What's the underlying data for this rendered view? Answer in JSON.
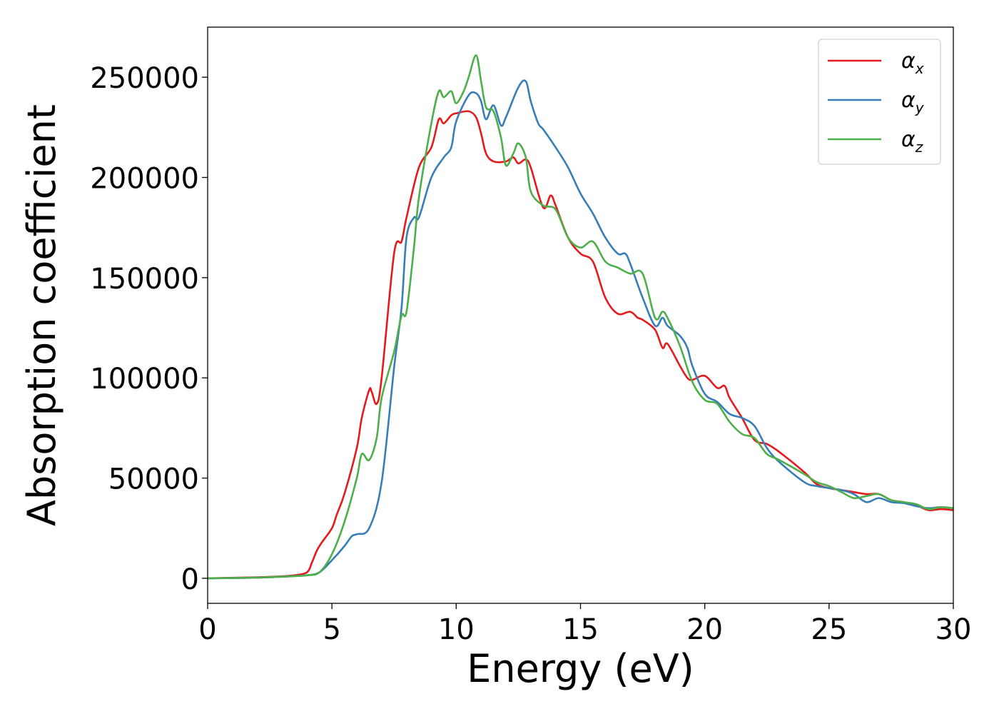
{
  "chart_data": {
    "type": "line",
    "title": "",
    "xlabel": "Energy (eV)",
    "ylabel": "Absorption coefficient",
    "xlim": [
      0,
      30
    ],
    "ylim": [
      -12500,
      275000
    ],
    "xticks": [
      0,
      5,
      10,
      15,
      20,
      25,
      30
    ],
    "xtick_labels": [
      "0",
      "5",
      "10",
      "15",
      "20",
      "25",
      "30"
    ],
    "yticks": [
      0,
      50000,
      100000,
      150000,
      200000,
      250000
    ],
    "ytick_labels": [
      "0",
      "50000",
      "100000",
      "150000",
      "200000",
      "250000"
    ],
    "grid": false,
    "legend_position": "top-right",
    "series": [
      {
        "name": "αx",
        "name_base": "α",
        "name_sub": "x",
        "color": "#e41a1c",
        "x": [
          0,
          2,
          3,
          3.5,
          4,
          4.2,
          4.4,
          4.6,
          5.0,
          5.2,
          5.5,
          6.0,
          6.2,
          6.5,
          6.6,
          6.8,
          7.0,
          7.5,
          7.8,
          8.0,
          8.5,
          9.0,
          9.3,
          9.5,
          9.8,
          10.0,
          10.5,
          10.8,
          11.0,
          11.2,
          11.5,
          12.0,
          12.3,
          12.5,
          12.8,
          13.0,
          13.5,
          13.8,
          14.0,
          14.5,
          15.0,
          15.5,
          16.0,
          16.5,
          17.0,
          17.3,
          17.5,
          18.0,
          18.3,
          18.5,
          19.0,
          19.3,
          19.5,
          20.0,
          20.5,
          20.8,
          21.0,
          21.5,
          22.0,
          22.5,
          23.0,
          24.0,
          24.5,
          25.0,
          25.5,
          26.0,
          26.5,
          27.0,
          27.5,
          28.0,
          28.5,
          29.0,
          29.5,
          30.0
        ],
        "values": [
          0,
          500,
          1000,
          1500,
          3000,
          8000,
          14000,
          18000,
          25000,
          32000,
          42000,
          65000,
          80000,
          94000,
          93000,
          87000,
          100000,
          162000,
          168000,
          180000,
          205000,
          215000,
          229000,
          227000,
          231000,
          232000,
          233000,
          230000,
          222000,
          212000,
          208000,
          208000,
          210000,
          207000,
          209000,
          205000,
          185000,
          191000,
          186000,
          170000,
          162000,
          158000,
          140000,
          132000,
          133000,
          130000,
          129000,
          124000,
          115000,
          117000,
          106000,
          100000,
          99000,
          101000,
          95000,
          96000,
          90000,
          80000,
          69000,
          67000,
          63000,
          53000,
          47000,
          45000,
          44000,
          43000,
          42000,
          42000,
          39000,
          38000,
          36500,
          34000,
          34500,
          34000
        ]
      },
      {
        "name": "αy",
        "name_base": "α",
        "name_sub": "y",
        "color": "#377eb8",
        "x": [
          0,
          2,
          3,
          4,
          4.5,
          5.0,
          5.5,
          5.8,
          6.0,
          6.5,
          7.0,
          7.5,
          7.8,
          8.0,
          8.3,
          8.5,
          9.0,
          9.5,
          9.8,
          10.0,
          10.5,
          10.8,
          11.0,
          11.2,
          11.5,
          11.8,
          12.0,
          12.5,
          12.8,
          13.0,
          13.3,
          13.5,
          14.0,
          14.5,
          15.0,
          15.5,
          16.0,
          16.5,
          16.8,
          17.0,
          17.5,
          18.0,
          18.3,
          18.5,
          19.0,
          19.3,
          19.5,
          20.0,
          20.5,
          21.0,
          21.5,
          22.0,
          22.5,
          23.0,
          24.0,
          24.5,
          25.0,
          25.5,
          26.0,
          26.5,
          27.0,
          27.5,
          28.0,
          28.5,
          29.0,
          29.5,
          30.0
        ],
        "values": [
          0,
          300,
          800,
          1500,
          3000,
          9000,
          16000,
          21000,
          22000,
          25000,
          48000,
          105000,
          135000,
          170000,
          180000,
          180000,
          200000,
          210000,
          215000,
          228000,
          241000,
          242000,
          238000,
          229000,
          236000,
          226000,
          230000,
          245000,
          248000,
          238000,
          227000,
          224000,
          215000,
          205000,
          192000,
          182000,
          170000,
          162000,
          162000,
          157000,
          140000,
          126000,
          130000,
          126000,
          121000,
          115000,
          106000,
          92000,
          88000,
          82000,
          80000,
          76000,
          65000,
          58000,
          48000,
          46000,
          45000,
          44000,
          42000,
          38000,
          40000,
          38000,
          37500,
          36000,
          35000,
          35500,
          35000
        ]
      },
      {
        "name": "αz",
        "name_base": "α",
        "name_sub": "z",
        "color": "#4daf4a",
        "x": [
          0,
          2,
          3,
          4,
          4.5,
          5.0,
          5.5,
          6.0,
          6.2,
          6.5,
          6.8,
          7.0,
          7.5,
          7.8,
          8.0,
          8.3,
          8.5,
          9.0,
          9.3,
          9.5,
          9.8,
          10.0,
          10.3,
          10.5,
          10.8,
          11.0,
          11.2,
          11.5,
          11.8,
          12.0,
          12.3,
          12.5,
          12.8,
          13.0,
          13.5,
          14.0,
          14.5,
          15.0,
          15.5,
          16.0,
          16.5,
          17.0,
          17.5,
          18.0,
          18.3,
          18.5,
          19.0,
          19.5,
          20.0,
          20.5,
          21.0,
          21.5,
          22.0,
          22.5,
          23.0,
          24.0,
          24.5,
          25.0,
          25.5,
          26.0,
          26.5,
          27.0,
          27.5,
          28.0,
          28.5,
          29.0,
          29.5,
          30.0
        ],
        "values": [
          0,
          300,
          800,
          1500,
          3000,
          12000,
          28000,
          50000,
          62000,
          59000,
          70000,
          90000,
          113000,
          131000,
          133000,
          165000,
          190000,
          227000,
          243000,
          240000,
          243000,
          237000,
          243000,
          250000,
          261000,
          248000,
          235000,
          233000,
          220000,
          206000,
          212000,
          217000,
          210000,
          193000,
          186000,
          184000,
          170000,
          165000,
          168000,
          158000,
          155000,
          152000,
          152000,
          130000,
          133000,
          130000,
          116000,
          98000,
          89000,
          87000,
          78000,
          72000,
          70000,
          62000,
          59000,
          52000,
          48000,
          46000,
          43000,
          40000,
          41000,
          42000,
          39000,
          38000,
          37000,
          34500,
          35500,
          35000
        ]
      }
    ]
  }
}
